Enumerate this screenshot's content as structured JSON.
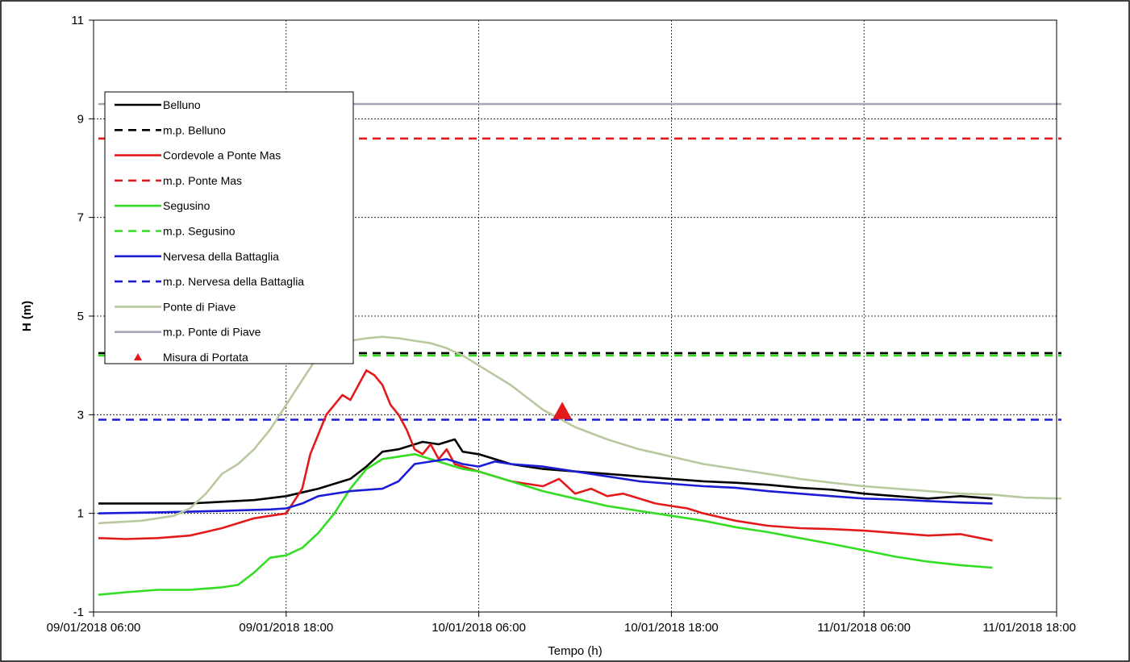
{
  "chart_data": {
    "type": "line",
    "title": "",
    "xlabel": "Tempo (h)",
    "ylabel": "H (m)",
    "x_unit": "hours",
    "x_ticks": [
      "09/01/2018 06:00",
      "09/01/2018 18:00",
      "10/01/2018 06:00",
      "10/01/2018 18:00",
      "11/01/2018 06:00",
      "11/01/2018 18:00"
    ],
    "x_tick_hours": [
      0,
      12,
      24,
      36,
      48,
      60
    ],
    "xlim": [
      0,
      60
    ],
    "ylim": [
      -1,
      11
    ],
    "y_ticks": [
      "-1",
      "1",
      "3",
      "5",
      "7",
      "9",
      "11"
    ],
    "y_tick_values": [
      -1,
      1,
      3,
      5,
      7,
      9,
      11
    ],
    "grid": true,
    "legend_position": "top-left",
    "series": [
      {
        "name": "Belluno",
        "color": "#000000",
        "dash": false,
        "x": [
          0.3,
          6,
          10,
          12,
          14,
          15,
          16,
          17,
          18,
          19,
          20.5,
          21.5,
          22.5,
          23,
          24,
          25,
          26,
          27,
          28,
          30,
          32,
          34,
          36,
          38,
          40,
          42,
          44,
          46,
          48,
          50,
          52,
          54,
          56
        ],
        "y": [
          1.2,
          1.2,
          1.27,
          1.35,
          1.5,
          1.6,
          1.7,
          1.95,
          2.25,
          2.3,
          2.45,
          2.4,
          2.5,
          2.25,
          2.2,
          2.1,
          2.0,
          1.95,
          1.9,
          1.85,
          1.8,
          1.75,
          1.7,
          1.65,
          1.62,
          1.58,
          1.52,
          1.48,
          1.4,
          1.35,
          1.3,
          1.35,
          1.3
        ]
      },
      {
        "name": "m.p. Belluno",
        "color": "#000000",
        "dash": true,
        "x": [
          0.3,
          60.3
        ],
        "y": [
          4.25,
          4.25
        ]
      },
      {
        "name": "Cordevole a Ponte Mas",
        "color": "#e31a1c",
        "dash": false,
        "x": [
          0.3,
          2,
          4,
          6,
          8,
          10,
          11,
          12,
          13,
          13.5,
          14.5,
          15.5,
          16,
          17,
          17.5,
          18,
          18.5,
          19,
          19.5,
          20,
          20.5,
          21,
          21.5,
          22,
          22.5,
          23,
          23.5,
          24,
          25,
          26,
          27,
          28,
          29,
          30,
          31,
          32,
          33,
          34,
          35,
          36,
          37,
          38,
          40,
          42,
          44,
          46,
          48,
          50,
          52,
          54,
          56
        ],
        "y": [
          0.5,
          0.48,
          0.5,
          0.55,
          0.7,
          0.9,
          0.95,
          1.0,
          1.5,
          2.2,
          3.0,
          3.4,
          3.3,
          3.9,
          3.8,
          3.6,
          3.2,
          3.0,
          2.7,
          2.3,
          2.2,
          2.4,
          2.1,
          2.3,
          2.0,
          1.95,
          1.9,
          1.85,
          1.75,
          1.65,
          1.6,
          1.55,
          1.7,
          1.4,
          1.5,
          1.35,
          1.4,
          1.3,
          1.2,
          1.15,
          1.1,
          1.0,
          0.85,
          0.75,
          0.7,
          0.68,
          0.65,
          0.6,
          0.55,
          0.58,
          0.45
        ]
      },
      {
        "name": "m.p. Ponte Mas",
        "color": "#e31a1c",
        "dash": true,
        "x": [
          0.3,
          60.3
        ],
        "y": [
          8.6,
          8.6
        ]
      },
      {
        "name": "Segusino",
        "color": "#33dd22",
        "dash": false,
        "x": [
          0.3,
          2,
          4,
          6,
          8,
          9,
          10,
          11,
          12,
          13,
          14,
          15,
          16,
          17,
          18,
          19,
          20,
          21,
          22,
          23,
          24,
          26,
          28,
          30,
          32,
          34,
          36,
          38,
          40,
          42,
          44,
          46,
          48,
          50,
          52,
          54,
          56
        ],
        "y": [
          -0.65,
          -0.6,
          -0.55,
          -0.55,
          -0.5,
          -0.45,
          -0.2,
          0.1,
          0.15,
          0.3,
          0.6,
          1.0,
          1.5,
          1.9,
          2.1,
          2.15,
          2.2,
          2.1,
          2.0,
          1.9,
          1.85,
          1.65,
          1.45,
          1.3,
          1.15,
          1.05,
          0.95,
          0.85,
          0.72,
          0.62,
          0.5,
          0.38,
          0.25,
          0.12,
          0.02,
          -0.05,
          -0.1
        ]
      },
      {
        "name": "m.p. Segusino",
        "color": "#33dd22",
        "dash": true,
        "x": [
          0.3,
          60.3
        ],
        "y": [
          4.2,
          4.2
        ]
      },
      {
        "name": "Nervesa della Battaglia",
        "color": "#1c1cd6",
        "dash": false,
        "x": [
          0.3,
          4,
          8,
          11,
          12,
          13,
          14,
          16,
          18,
          19,
          20,
          21,
          22,
          23,
          24,
          25,
          26,
          28,
          30,
          32,
          34,
          36,
          38,
          40,
          42,
          44,
          46,
          48,
          50,
          52,
          54,
          56
        ],
        "y": [
          1.0,
          1.02,
          1.05,
          1.08,
          1.1,
          1.2,
          1.35,
          1.45,
          1.5,
          1.65,
          2.0,
          2.05,
          2.1,
          2.0,
          1.95,
          2.05,
          2.0,
          1.95,
          1.85,
          1.75,
          1.65,
          1.6,
          1.55,
          1.52,
          1.45,
          1.4,
          1.35,
          1.3,
          1.28,
          1.25,
          1.22,
          1.2
        ]
      },
      {
        "name": "m.p. Nervesa della Battaglia",
        "color": "#1c1cd6",
        "dash": true,
        "x": [
          0.3,
          60.3
        ],
        "y": [
          2.9,
          2.9
        ]
      },
      {
        "name": "Ponte di Piave",
        "color": "#b8c9a0",
        "dash": false,
        "x": [
          0.3,
          3,
          5,
          6,
          7,
          8,
          9,
          10,
          11,
          12,
          13,
          14,
          15,
          16,
          17,
          18,
          19,
          20,
          21,
          22,
          23,
          24,
          26,
          28,
          30,
          32,
          34,
          36,
          38,
          40,
          42,
          44,
          46,
          48,
          50,
          52,
          54,
          56,
          58,
          60.3
        ],
        "y": [
          0.8,
          0.85,
          0.95,
          1.1,
          1.4,
          1.8,
          2.0,
          2.3,
          2.7,
          3.2,
          3.7,
          4.2,
          4.4,
          4.5,
          4.55,
          4.58,
          4.55,
          4.5,
          4.45,
          4.35,
          4.2,
          4.0,
          3.6,
          3.1,
          2.75,
          2.5,
          2.3,
          2.15,
          2.0,
          1.9,
          1.8,
          1.7,
          1.62,
          1.55,
          1.5,
          1.45,
          1.4,
          1.38,
          1.32,
          1.3
        ]
      },
      {
        "name": "m.p. Ponte di Piave",
        "color": "#a8a4b8",
        "dash": false,
        "x": [
          0.3,
          60.3
        ],
        "y": [
          9.3,
          9.3
        ]
      }
    ],
    "markers": [
      {
        "name": "Misura di Portata",
        "color": "#e31a1c",
        "shape": "triangle",
        "x": [
          29.2
        ],
        "y": [
          3.05
        ]
      }
    ]
  }
}
